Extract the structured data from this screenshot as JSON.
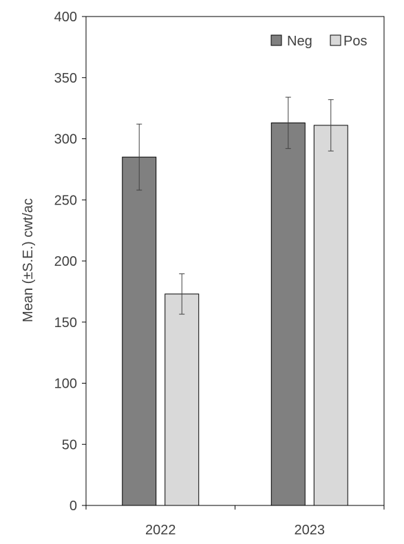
{
  "chart_data": {
    "type": "bar",
    "categories": [
      "2022",
      "2023"
    ],
    "series": [
      {
        "name": "Neg",
        "color": "#808080",
        "values": [
          285,
          313
        ],
        "errors": [
          27,
          21
        ]
      },
      {
        "name": "Pos",
        "color": "#d9d9d9",
        "values": [
          173,
          311
        ],
        "errors": [
          16.5,
          21
        ]
      }
    ],
    "ylabel": "Mean (±S.E.) cwt/ac",
    "xlabel": "",
    "ylim": [
      0,
      400
    ],
    "yticks": [
      0,
      50,
      100,
      150,
      200,
      250,
      300,
      350,
      400
    ],
    "grid": false,
    "legend_position": "top-right"
  }
}
